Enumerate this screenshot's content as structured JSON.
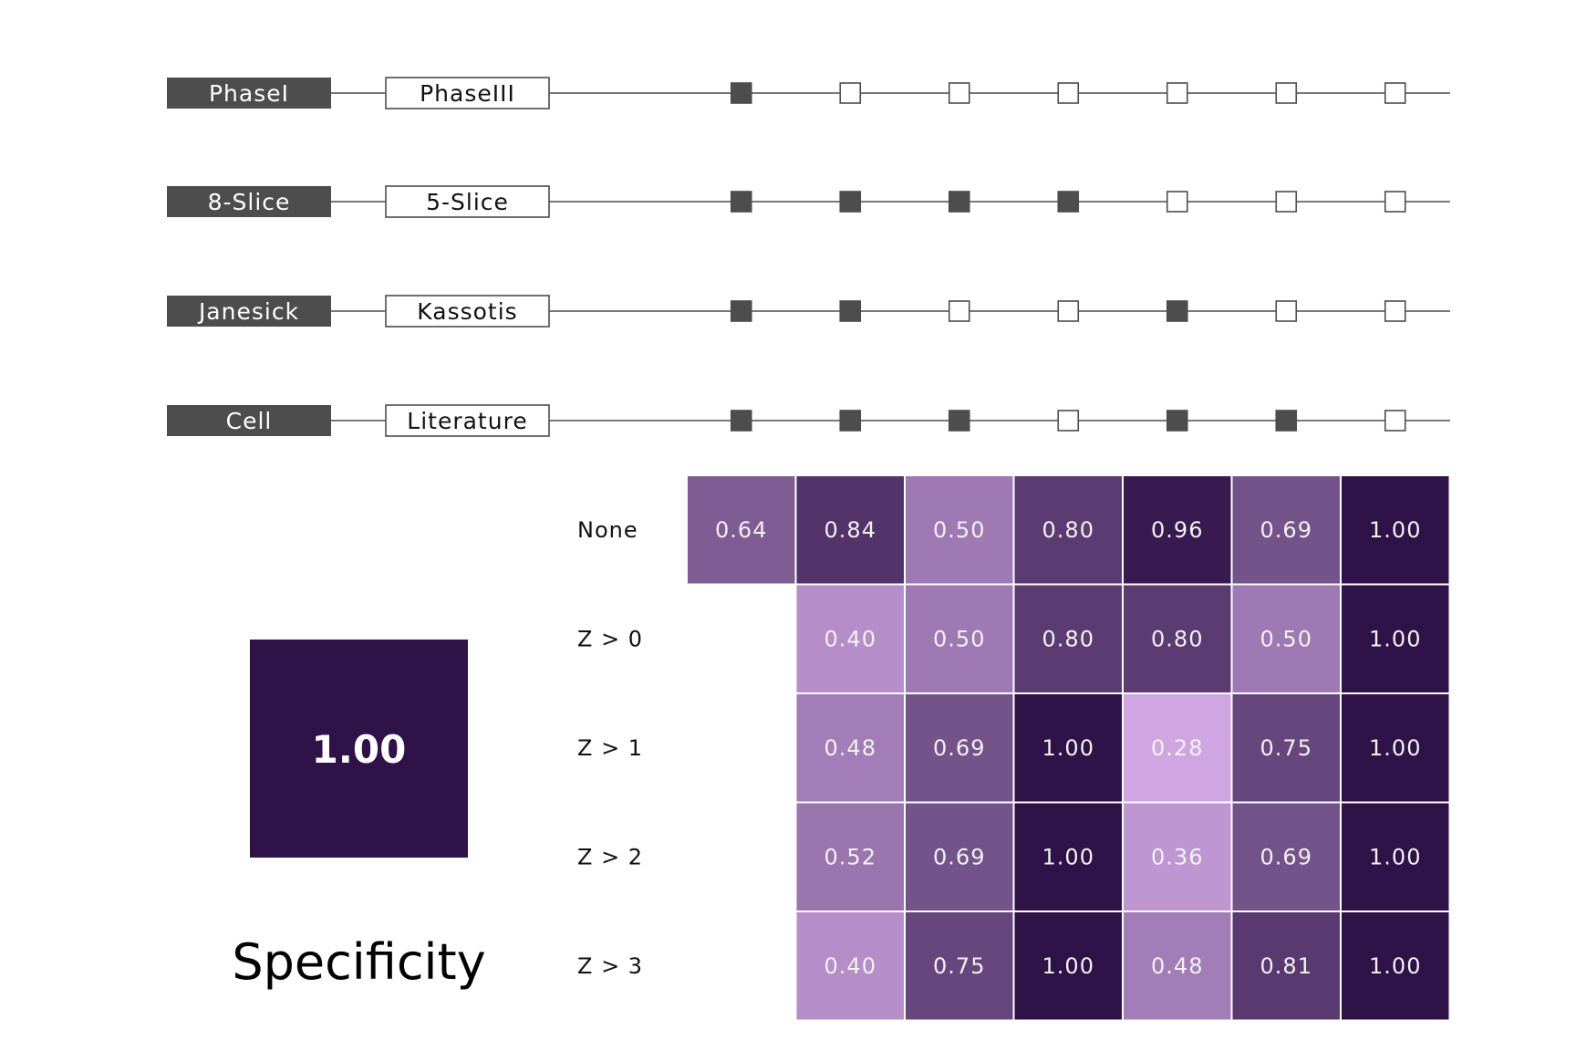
{
  "chart_data": {
    "type": "heatmap",
    "title": "Specificity",
    "summary_value": "1.00",
    "palette": {
      "low": "#d0a6e2",
      "high": "#2f1247",
      "dark_label_bg": "#4d4d4d",
      "line": "#4d4d4d"
    },
    "pairs": [
      {
        "left": "PhaseI",
        "right": "PhaseIII"
      },
      {
        "left": "8-Slice",
        "right": "5-Slice"
      },
      {
        "left": "Janesick",
        "right": "Kassotis"
      },
      {
        "left": "Cell",
        "right": "Literature"
      }
    ],
    "membership": [
      [
        1,
        0,
        0,
        0,
        0,
        0,
        0
      ],
      [
        1,
        1,
        1,
        1,
        0,
        0,
        0
      ],
      [
        1,
        1,
        0,
        0,
        1,
        0,
        0
      ],
      [
        1,
        1,
        1,
        0,
        1,
        1,
        0
      ]
    ],
    "rows": [
      "None",
      "Z > 0",
      "Z > 1",
      "Z > 2",
      "Z > 3"
    ],
    "values": [
      [
        "0.64",
        "0.84",
        "0.50",
        "0.80",
        "0.96",
        "0.69",
        "1.00"
      ],
      [
        null,
        "0.40",
        "0.50",
        "0.80",
        "0.80",
        "0.50",
        "1.00"
      ],
      [
        null,
        "0.48",
        "0.69",
        "1.00",
        "0.28",
        "0.75",
        "1.00"
      ],
      [
        null,
        "0.52",
        "0.69",
        "1.00",
        "0.36",
        "0.69",
        "1.00"
      ],
      [
        null,
        "0.40",
        "0.75",
        "1.00",
        "0.48",
        "0.81",
        "1.00"
      ]
    ]
  }
}
